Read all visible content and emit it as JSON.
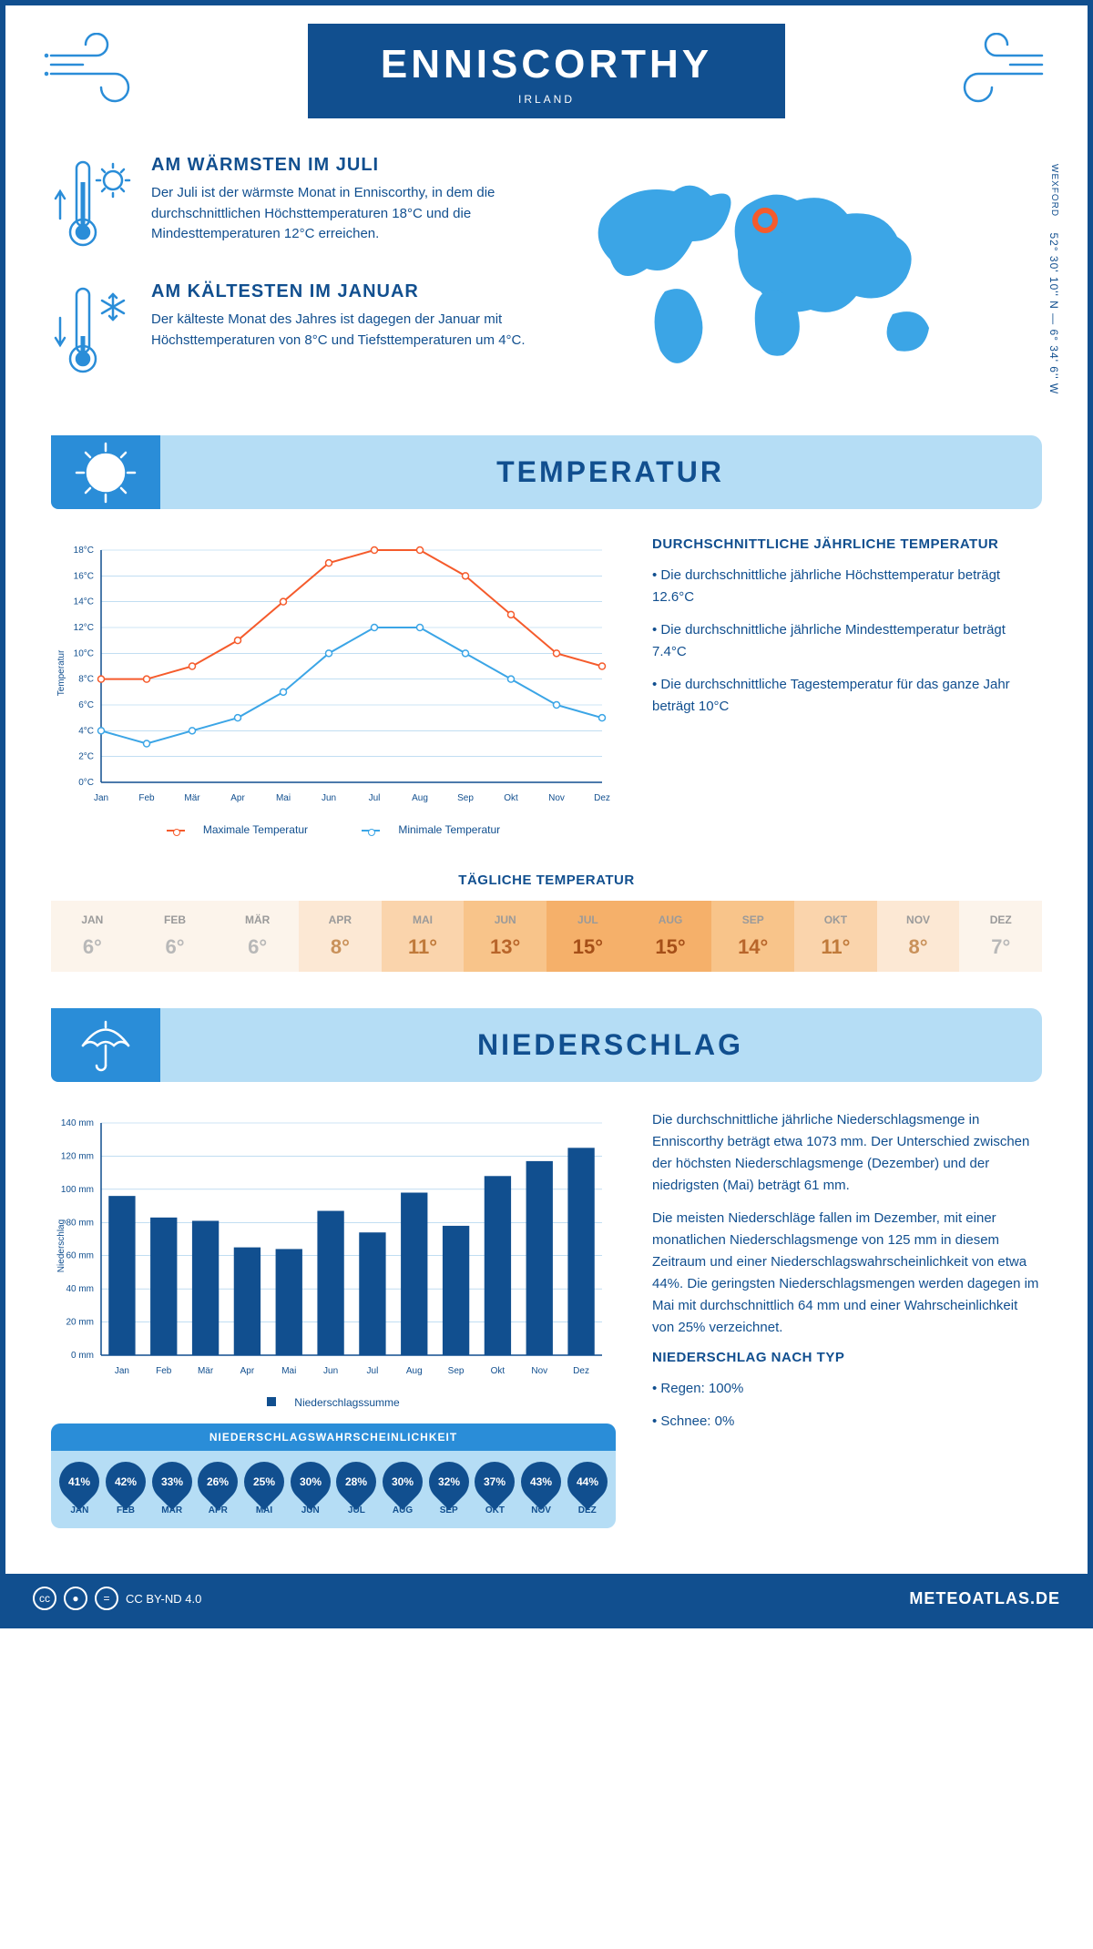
{
  "header": {
    "city": "ENNISCORTHY",
    "country": "IRLAND"
  },
  "location": {
    "region": "WEXFORD",
    "coords": "52° 30' 10'' N — 6° 34' 6'' W"
  },
  "facts": {
    "warm": {
      "title": "AM WÄRMSTEN IM JULI",
      "text": "Der Juli ist der wärmste Monat in Enniscorthy, in dem die durchschnittlichen Höchsttemperaturen 18°C und die Mindesttemperaturen 12°C erreichen."
    },
    "cold": {
      "title": "AM KÄLTESTEN IM JANUAR",
      "text": "Der kälteste Monat des Jahres ist dagegen der Januar mit Höchsttemperaturen von 8°C und Tiefsttemperaturen um 4°C."
    }
  },
  "sections": {
    "temperature": "TEMPERATUR",
    "precipitation": "NIEDERSCHLAG"
  },
  "temp_chart": {
    "type": "line",
    "months": [
      "Jan",
      "Feb",
      "Mär",
      "Apr",
      "Mai",
      "Jun",
      "Jul",
      "Aug",
      "Sep",
      "Okt",
      "Nov",
      "Dez"
    ],
    "max": [
      8,
      8,
      9,
      11,
      14,
      17,
      18,
      18,
      16,
      13,
      10,
      9
    ],
    "min": [
      4,
      3,
      4,
      5,
      7,
      10,
      12,
      12,
      10,
      8,
      6,
      5
    ],
    "ylim": [
      0,
      18
    ],
    "ytick_step": 2,
    "ylabel": "Temperatur",
    "max_color": "#f55b2c",
    "min_color": "#3ba5e6",
    "grid_color": "#9cc9ea",
    "axis_color": "#114f8f",
    "legend_max": "Maximale Temperatur",
    "legend_min": "Minimale Temperatur",
    "label_fontsize": 10
  },
  "temp_info": {
    "heading": "DURCHSCHNITTLICHE JÄHRLICHE TEMPERATUR",
    "b1": "• Die durchschnittliche jährliche Höchsttemperatur beträgt 12.6°C",
    "b2": "• Die durchschnittliche jährliche Mindesttemperatur beträgt 7.4°C",
    "b3": "• Die durchschnittliche Tagestemperatur für das ganze Jahr beträgt 10°C"
  },
  "daily_temp": {
    "title": "TÄGLICHE TEMPERATUR",
    "months": [
      "JAN",
      "FEB",
      "MÄR",
      "APR",
      "MAI",
      "JUN",
      "JUL",
      "AUG",
      "SEP",
      "OKT",
      "NOV",
      "DEZ"
    ],
    "values": [
      "6°",
      "6°",
      "6°",
      "8°",
      "11°",
      "13°",
      "15°",
      "15°",
      "14°",
      "11°",
      "8°",
      "7°"
    ],
    "bg_colors": [
      "#fcf4eb",
      "#fcf4eb",
      "#fcf4eb",
      "#fce8d4",
      "#fad4ac",
      "#f8c48a",
      "#f5b06a",
      "#f5b06a",
      "#f8c48a",
      "#fad4ac",
      "#fce8d4",
      "#fcf4eb"
    ],
    "text_colors": [
      "#b8b8b8",
      "#b8b8b8",
      "#b8b8b8",
      "#c9915a",
      "#c07a3a",
      "#b8652a",
      "#a54f18",
      "#a54f18",
      "#b8652a",
      "#c07a3a",
      "#c9915a",
      "#b8b8b8"
    ]
  },
  "precip_chart": {
    "type": "bar",
    "months": [
      "Jan",
      "Feb",
      "Mär",
      "Apr",
      "Mai",
      "Jun",
      "Jul",
      "Aug",
      "Sep",
      "Okt",
      "Nov",
      "Dez"
    ],
    "values": [
      96,
      83,
      81,
      65,
      64,
      87,
      74,
      98,
      78,
      108,
      117,
      125
    ],
    "ylim": [
      0,
      140
    ],
    "ytick_step": 20,
    "ylabel": "Niederschlag",
    "bar_color": "#114f8f",
    "grid_color": "#9cc9ea",
    "legend": "Niederschlagssumme",
    "label_fontsize": 10
  },
  "precip_info": {
    "p1": "Die durchschnittliche jährliche Niederschlagsmenge in Enniscorthy beträgt etwa 1073 mm. Der Unterschied zwischen der höchsten Niederschlagsmenge (Dezember) und der niedrigsten (Mai) beträgt 61 mm.",
    "p2": "Die meisten Niederschläge fallen im Dezember, mit einer monatlichen Niederschlagsmenge von 125 mm in diesem Zeitraum und einer Niederschlagswahrscheinlichkeit von etwa 44%. Die geringsten Niederschlagsmengen werden dagegen im Mai mit durchschnittlich 64 mm und einer Wahrscheinlichkeit von 25% verzeichnet.",
    "type_heading": "NIEDERSCHLAG NACH TYP",
    "t1": "• Regen: 100%",
    "t2": "• Schnee: 0%"
  },
  "precip_prob": {
    "title": "NIEDERSCHLAGSWAHRSCHEINLICHKEIT",
    "months": [
      "JAN",
      "FEB",
      "MÄR",
      "APR",
      "MAI",
      "JUN",
      "JUL",
      "AUG",
      "SEP",
      "OKT",
      "NOV",
      "DEZ"
    ],
    "values": [
      "41%",
      "42%",
      "33%",
      "26%",
      "25%",
      "30%",
      "28%",
      "30%",
      "32%",
      "37%",
      "43%",
      "44%"
    ]
  },
  "footer": {
    "license": "CC BY-ND 4.0",
    "brand": "METEOATLAS.DE"
  },
  "colors": {
    "primary": "#114f8f",
    "light": "#b5ddf5",
    "accent": "#2a8dd8",
    "map": "#3ba5e6",
    "marker": "#f55b2c"
  }
}
